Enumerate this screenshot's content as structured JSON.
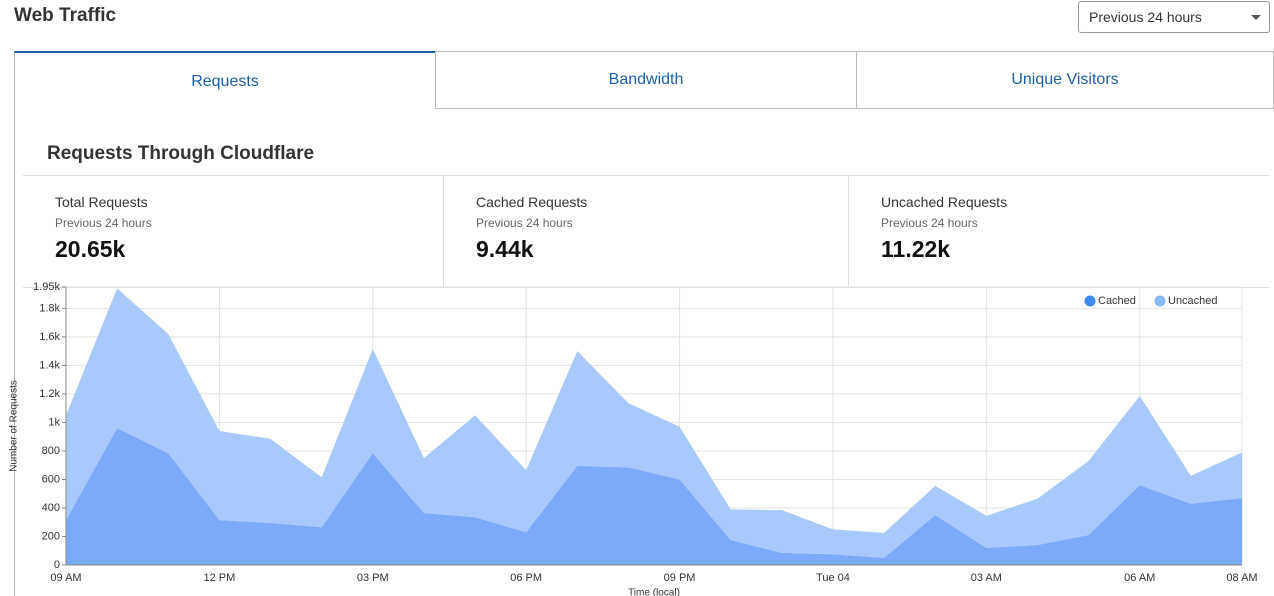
{
  "header": {
    "title": "Web Traffic",
    "range_select": "Previous 24 hours"
  },
  "tabs": [
    "Requests",
    "Bandwidth",
    "Unique Visitors"
  ],
  "section_title": "Requests Through Cloudflare",
  "stats": [
    {
      "label": "Total Requests",
      "period": "Previous 24 hours",
      "value": "20.65k"
    },
    {
      "label": "Cached Requests",
      "period": "Previous 24 hours",
      "value": "9.44k"
    },
    {
      "label": "Uncached Requests",
      "period": "Previous 24 hours",
      "value": "11.22k"
    }
  ],
  "chart_data": {
    "type": "stacked-area",
    "y_label": "Number of Requests",
    "x_label": "Time (local)",
    "categories": [
      "09 AM",
      null,
      null,
      "12 PM",
      null,
      null,
      "03 PM",
      null,
      null,
      "06 PM",
      null,
      null,
      "09 PM",
      null,
      null,
      "Tue 04",
      null,
      null,
      "03 AM",
      null,
      null,
      "06 AM",
      null,
      "08 AM"
    ],
    "series": [
      {
        "name": "Cached",
        "color": "#7aaaf8",
        "legend_color": "#3d8af0",
        "values": [
          315,
          960,
          785,
          315,
          295,
          265,
          785,
          365,
          335,
          230,
          695,
          685,
          600,
          175,
          85,
          75,
          50,
          350,
          120,
          140,
          210,
          560,
          430,
          470
        ]
      },
      {
        "name": "Uncached",
        "color": "#a8c9fb",
        "legend_color": "#8ab8f8",
        "values": [
          735,
          980,
          835,
          625,
          590,
          350,
          730,
          385,
          715,
          435,
          805,
          450,
          370,
          215,
          300,
          175,
          175,
          205,
          225,
          325,
          520,
          625,
          195,
          320
        ]
      }
    ],
    "ylim": [
      0,
      1950
    ],
    "yticks": [
      0,
      200,
      400,
      600,
      800,
      {
        "value": 1000,
        "label": "1k"
      },
      {
        "value": 1200,
        "label": "1.2k"
      },
      {
        "value": 1400,
        "label": "1.4k"
      },
      {
        "value": 1600,
        "label": "1.6k"
      },
      {
        "value": 1800,
        "label": "1.8k"
      },
      {
        "value": 1950,
        "label": "1.95k"
      }
    ],
    "grid": true,
    "legend": "top-right"
  }
}
